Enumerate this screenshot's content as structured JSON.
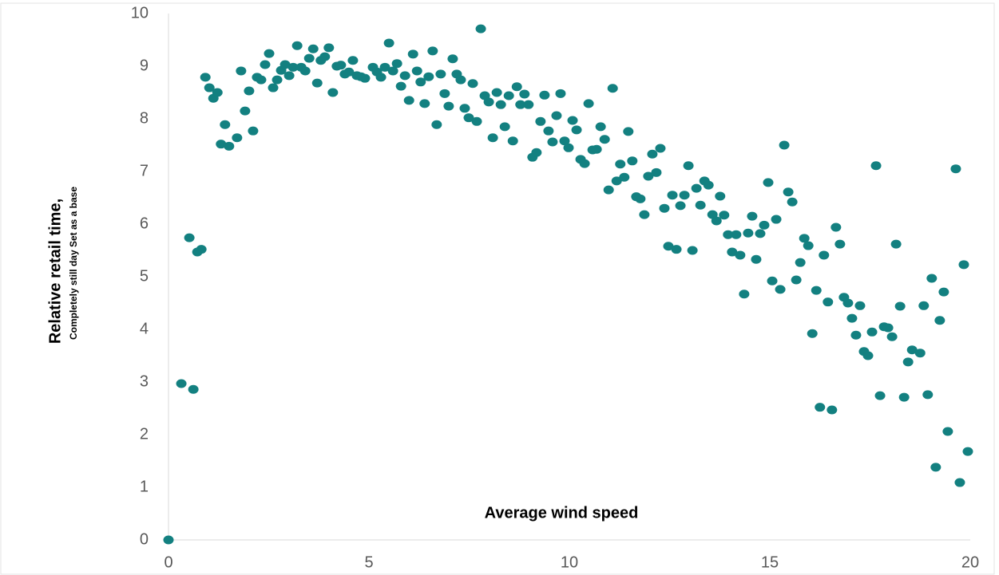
{
  "chart_data": {
    "type": "scatter",
    "x_label": "Average wind speed",
    "y_label": "Relative retail time,",
    "y_sublabel": "Completely still day Set as a base",
    "color": "#138080",
    "xlim": [
      0,
      20
    ],
    "xticks": [
      0,
      5,
      10,
      15,
      20
    ],
    "ylim": [
      0,
      10
    ],
    "yticks": [
      0,
      1,
      2,
      3,
      4,
      5,
      6,
      7,
      8,
      9,
      10
    ],
    "x": [
      0,
      0.32,
      0.52,
      0.62,
      0.72,
      0.82,
      0.92,
      1.02,
      1.12,
      1.22,
      1.31,
      1.41,
      1.51,
      1.71,
      1.81,
      1.91,
      2.01,
      2.11,
      2.21,
      2.31,
      2.41,
      2.51,
      2.61,
      2.71,
      2.81,
      2.91,
      3.01,
      3.11,
      3.21,
      3.31,
      3.41,
      3.51,
      3.61,
      3.71,
      3.8,
      3.9,
      4,
      4.1,
      4.2,
      4.3,
      4.4,
      4.5,
      4.6,
      4.7,
      4.8,
      4.9,
      5.1,
      5.2,
      5.3,
      5.4,
      5.5,
      5.6,
      5.7,
      5.8,
      5.9,
      6,
      6.1,
      6.2,
      6.29,
      6.39,
      6.49,
      6.59,
      6.69,
      6.79,
      6.89,
      6.99,
      7.09,
      7.19,
      7.29,
      7.39,
      7.49,
      7.59,
      7.69,
      7.79,
      7.89,
      7.99,
      8.09,
      8.19,
      8.29,
      8.39,
      8.49,
      8.59,
      8.69,
      8.78,
      8.88,
      8.98,
      9.08,
      9.18,
      9.28,
      9.38,
      9.48,
      9.58,
      9.68,
      9.78,
      9.88,
      9.98,
      10.08,
      10.18,
      10.28,
      10.38,
      10.48,
      10.58,
      10.68,
      10.78,
      10.88,
      10.98,
      11.08,
      11.18,
      11.27,
      11.37,
      11.47,
      11.57,
      11.67,
      11.77,
      11.87,
      11.97,
      12.07,
      12.17,
      12.27,
      12.37,
      12.47,
      12.57,
      12.67,
      12.77,
      12.87,
      12.97,
      13.07,
      13.17,
      13.27,
      13.37,
      13.47,
      13.57,
      13.67,
      13.76,
      13.86,
      13.96,
      14.06,
      14.16,
      14.26,
      14.36,
      14.46,
      14.56,
      14.66,
      14.76,
      14.86,
      14.96,
      15.06,
      15.16,
      15.26,
      15.36,
      15.46,
      15.56,
      15.66,
      15.76,
      15.86,
      15.96,
      16.06,
      16.16,
      16.25,
      16.35,
      16.45,
      16.55,
      16.65,
      16.75,
      16.85,
      16.95,
      17.05,
      17.15,
      17.25,
      17.35,
      17.45,
      17.55,
      17.65,
      17.75,
      17.85,
      17.95,
      18.05,
      18.15,
      18.25,
      18.35,
      18.45,
      18.55,
      18.75,
      18.84,
      18.94,
      19.04,
      19.14,
      19.24,
      19.34,
      19.44,
      19.64,
      19.74,
      19.84,
      19.94
    ],
    "values": [
      0,
      2.97,
      5.74,
      2.86,
      5.47,
      5.52,
      8.79,
      8.59,
      8.39,
      8.5,
      7.52,
      7.89,
      7.48,
      7.64,
      8.91,
      8.15,
      8.53,
      7.77,
      8.79,
      8.74,
      9.03,
      9.24,
      8.59,
      8.74,
      8.92,
      9.03,
      8.82,
      8.98,
      9.39,
      8.98,
      8.91,
      9.15,
      9.33,
      8.68,
      9.11,
      9.18,
      9.35,
      8.5,
      9,
      9.02,
      8.85,
      8.89,
      9.11,
      8.82,
      8.8,
      8.77,
      8.98,
      8.89,
      8.79,
      8.98,
      9.44,
      8.91,
      9.05,
      8.62,
      8.82,
      8.35,
      9.23,
      8.91,
      8.7,
      8.29,
      8.8,
      9.29,
      7.89,
      8.85,
      8.48,
      8.24,
      9.14,
      8.85,
      8.74,
      8.2,
      8.02,
      8.67,
      7.95,
      9.71,
      8.44,
      8.32,
      7.64,
      8.5,
      8.27,
      7.85,
      8.44,
      7.58,
      8.61,
      8.27,
      8.47,
      8.27,
      7.27,
      7.36,
      7.95,
      8.45,
      7.77,
      7.56,
      8.06,
      8.48,
      7.58,
      7.45,
      7.97,
      7.79,
      7.23,
      7.15,
      8.29,
      7.41,
      7.42,
      7.85,
      7.61,
      6.65,
      8.58,
      6.82,
      7.14,
      6.89,
      7.76,
      7.2,
      6.52,
      6.48,
      6.18,
      6.91,
      7.33,
      6.98,
      7.44,
      6.3,
      5.58,
      6.55,
      5.52,
      6.35,
      6.55,
      7.11,
      5.5,
      6.68,
      6.36,
      6.82,
      6.74,
      6.18,
      6.06,
      6.53,
      6.17,
      5.8,
      5.47,
      5.8,
      5.41,
      4.67,
      5.83,
      6.15,
      5.33,
      5.82,
      5.98,
      6.79,
      4.92,
      6.09,
      4.76,
      7.5,
      6.61,
      6.42,
      4.94,
      5.27,
      5.73,
      5.59,
      3.92,
      4.74,
      2.52,
      5.41,
      4.52,
      2.47,
      5.94,
      5.62,
      4.61,
      4.5,
      4.21,
      3.89,
      4.45,
      3.58,
      3.5,
      3.95,
      7.11,
      2.74,
      4.05,
      4.03,
      3.86,
      5.62,
      4.44,
      2.71,
      3.38,
      3.61,
      3.55,
      4.45,
      2.76,
      4.97,
      1.38,
      4.17,
      4.71,
      2.06,
      7.05,
      1.09,
      5.23,
      1.68
    ]
  }
}
